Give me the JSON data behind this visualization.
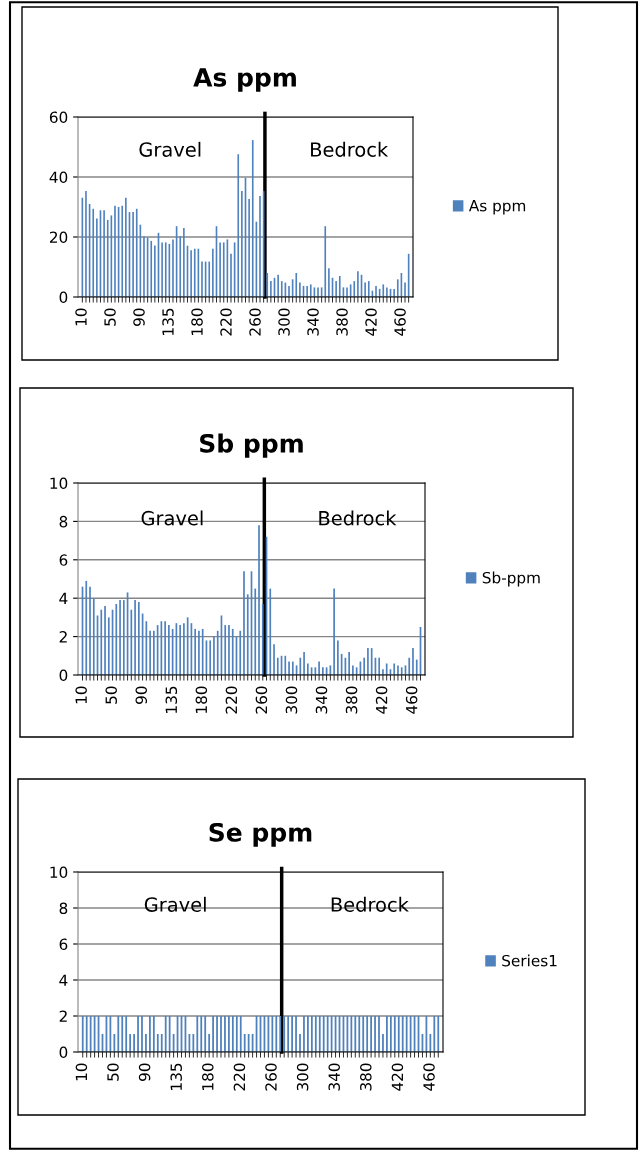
{
  "chart_data": [
    {
      "type": "bar",
      "title": "As ppm",
      "categories": [
        "10",
        null,
        null,
        null,
        null,
        null,
        null,
        null,
        "50",
        null,
        null,
        null,
        null,
        null,
        null,
        null,
        "90",
        null,
        null,
        null,
        null,
        null,
        null,
        null,
        "135",
        null,
        null,
        null,
        null,
        null,
        null,
        null,
        "180",
        null,
        null,
        null,
        null,
        null,
        null,
        null,
        "220",
        null,
        null,
        null,
        null,
        null,
        null,
        null,
        "260",
        null,
        null,
        null,
        null,
        null,
        null,
        null,
        "300",
        null,
        null,
        null,
        null,
        null,
        null,
        null,
        "340",
        null,
        null,
        null,
        null,
        null,
        null,
        null,
        "380",
        null,
        null,
        null,
        null,
        null,
        null,
        null,
        "420",
        null,
        null,
        null,
        null,
        null,
        null,
        null,
        "460",
        null,
        null
      ],
      "series": [
        {
          "name": "As ppm",
          "color": "#4f81bd",
          "values": [
            33.1,
            35.3,
            31,
            29.4,
            26.2,
            28.9,
            28.9,
            25.7,
            27.2,
            30.4,
            30,
            30.4,
            33.1,
            28.3,
            28.3,
            29.4,
            24.1,
            20.2,
            19.8,
            18.7,
            17.2,
            21.4,
            18.2,
            18.2,
            17.7,
            19.2,
            23.6,
            20.2,
            23,
            17.1,
            15.6,
            16.1,
            16.1,
            11.8,
            11.8,
            11.8,
            16.1,
            23.6,
            18.2,
            18.2,
            19.2,
            14.4,
            18.2,
            47.6,
            35.3,
            39.7,
            32.7,
            52.3,
            25.1,
            33.7,
            35.3,
            8,
            5.3,
            6.4,
            7.4,
            5.3,
            4.8,
            3.7,
            5.9,
            8,
            4.8,
            3.7,
            3.7,
            4.2,
            3.2,
            3.2,
            3.2,
            23.6,
            9.6,
            6.4,
            5.3,
            7,
            3.2,
            3.2,
            4.2,
            5.3,
            8.6,
            7.4,
            4.8,
            5.3,
            2.1,
            3.7,
            2.7,
            4.2,
            3.2,
            2.7,
            2.7,
            5.9,
            8,
            4.8,
            14.4
          ]
        }
      ],
      "ylim": [
        0,
        60
      ],
      "yticks": [
        0,
        20,
        40,
        60
      ],
      "grid": "y",
      "legend": "right",
      "annotations": [
        "Gravel",
        "Bedrock"
      ]
    },
    {
      "type": "bar",
      "title": "Sb ppm",
      "categories": [
        "10",
        null,
        null,
        null,
        null,
        null,
        null,
        null,
        "50",
        null,
        null,
        null,
        null,
        null,
        null,
        null,
        "90",
        null,
        null,
        null,
        null,
        null,
        null,
        null,
        "135",
        null,
        null,
        null,
        null,
        null,
        null,
        null,
        "180",
        null,
        null,
        null,
        null,
        null,
        null,
        null,
        "220",
        null,
        null,
        null,
        null,
        null,
        null,
        null,
        "260",
        null,
        null,
        null,
        null,
        null,
        null,
        null,
        "300",
        null,
        null,
        null,
        null,
        null,
        null,
        null,
        "340",
        null,
        null,
        null,
        null,
        null,
        null,
        null,
        "380",
        null,
        null,
        null,
        null,
        null,
        null,
        null,
        "420",
        null,
        null,
        null,
        null,
        null,
        null,
        null,
        "460",
        null,
        null
      ],
      "series": [
        {
          "name": "Sb-ppm",
          "color": "#4f81bd",
          "values": [
            4.6,
            4.9,
            4.6,
            4.0,
            3.1,
            3.4,
            3.6,
            3.0,
            3.4,
            3.7,
            3.9,
            3.9,
            4.3,
            3.4,
            3.9,
            3.8,
            3.2,
            2.8,
            2.3,
            2.3,
            2.6,
            2.8,
            2.8,
            2.6,
            2.4,
            2.7,
            2.6,
            2.7,
            3.0,
            2.7,
            2.4,
            2.3,
            2.4,
            1.8,
            1.8,
            2.0,
            2.3,
            3.1,
            2.6,
            2.6,
            2.4,
            2.0,
            2.3,
            5.4,
            4.2,
            5.4,
            4.5,
            7.8,
            3.7,
            7.2,
            4.5,
            1.6,
            0.9,
            1.0,
            1.0,
            0.7,
            0.7,
            0.5,
            0.9,
            1.2,
            0.6,
            0.4,
            0.4,
            0.7,
            0.4,
            0.4,
            0.5,
            4.5,
            1.8,
            1.1,
            0.9,
            1.2,
            0.5,
            0.4,
            0.7,
            0.9,
            1.4,
            1.4,
            0.9,
            0.9,
            0.3,
            0.6,
            0.3,
            0.6,
            0.5,
            0.4,
            0.5,
            0.9,
            1.4,
            0.8,
            2.5
          ]
        }
      ],
      "ylim": [
        0,
        10
      ],
      "yticks": [
        0,
        2,
        4,
        6,
        8,
        10
      ],
      "grid": "y",
      "legend": "right",
      "annotations": [
        "Gravel",
        "Bedrock"
      ]
    },
    {
      "type": "bar",
      "title": "Se ppm",
      "categories": [
        "10",
        null,
        null,
        null,
        null,
        null,
        null,
        null,
        "50",
        null,
        null,
        null,
        null,
        null,
        null,
        null,
        "90",
        null,
        null,
        null,
        null,
        null,
        null,
        null,
        "135",
        null,
        null,
        null,
        null,
        null,
        null,
        null,
        "180",
        null,
        null,
        null,
        null,
        null,
        null,
        null,
        "220",
        null,
        null,
        null,
        null,
        null,
        null,
        null,
        "260",
        null,
        null,
        null,
        null,
        null,
        null,
        null,
        "300",
        null,
        null,
        null,
        null,
        null,
        null,
        null,
        "340",
        null,
        null,
        null,
        null,
        null,
        null,
        null,
        "380",
        null,
        null,
        null,
        null,
        null,
        null,
        null,
        "420",
        null,
        null,
        null,
        null,
        null,
        null,
        null,
        "460",
        null,
        null
      ],
      "series": [
        {
          "name": "Series1",
          "color": "#4f81bd",
          "values": [
            2,
            2,
            2,
            2,
            2,
            1,
            2,
            2,
            1,
            2,
            2,
            2,
            1,
            1,
            2,
            2,
            1,
            2,
            2,
            1,
            1,
            2,
            2,
            1,
            2,
            2,
            2,
            1,
            1,
            2,
            2,
            2,
            1,
            2,
            2,
            2,
            2,
            2,
            2,
            2,
            2,
            1,
            1,
            1,
            2,
            2,
            2,
            2,
            2,
            2,
            2,
            2,
            2,
            2,
            2,
            1,
            2,
            2,
            2,
            2,
            2,
            2,
            2,
            2,
            2,
            2,
            2,
            2,
            2,
            2,
            2,
            2,
            2,
            2,
            2,
            2,
            1,
            2,
            2,
            2,
            2,
            2,
            2,
            2,
            2,
            2,
            1,
            2,
            1,
            2,
            2
          ]
        }
      ],
      "ylim": [
        0,
        10
      ],
      "yticks": [
        0,
        2,
        4,
        6,
        8,
        10
      ],
      "grid": "y",
      "legend": "right",
      "annotations": [
        "Gravel",
        "Bedrock"
      ]
    }
  ]
}
